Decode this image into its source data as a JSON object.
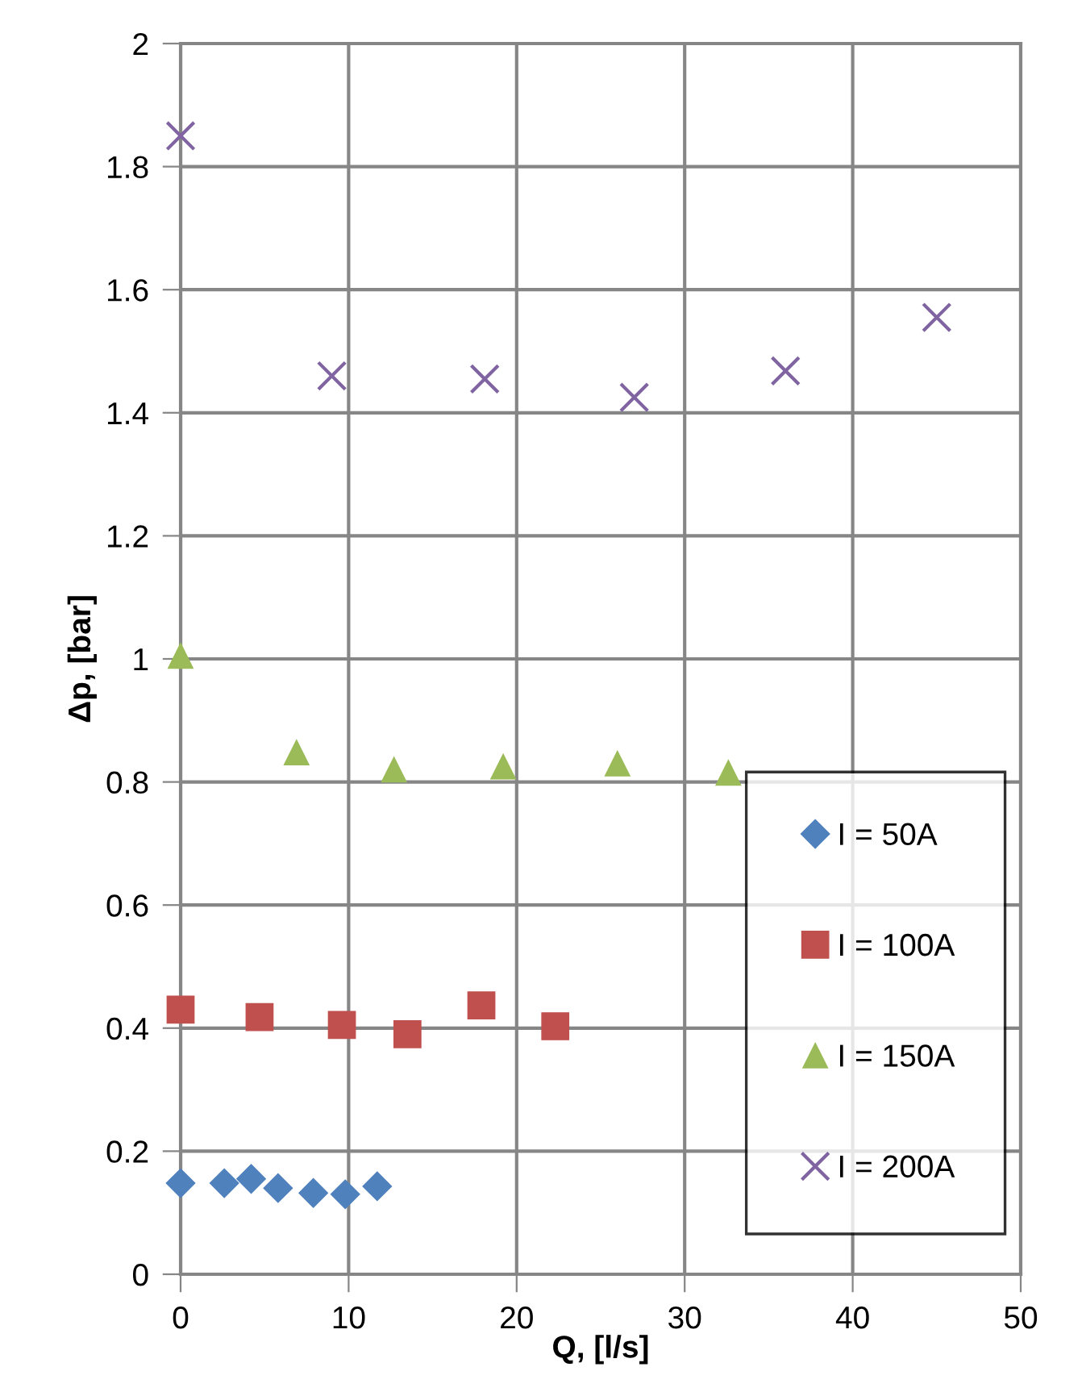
{
  "chart_data": {
    "type": "scatter",
    "xlabel": "Q, [l/s]",
    "ylabel": "Δp, [bar]",
    "xlim": [
      0,
      50
    ],
    "xticks": [
      0,
      10,
      20,
      30,
      40,
      50
    ],
    "ylim": [
      0,
      2
    ],
    "yticks": [
      0,
      0.2,
      0.4,
      0.6,
      0.8,
      1,
      1.2,
      1.4,
      1.6,
      1.8,
      2
    ],
    "grid": true,
    "legend": "right",
    "series": [
      {
        "name": "I = 50A",
        "color": "#4f81bd",
        "marker": "diamond",
        "x": [
          0,
          2.6,
          4.2,
          5.8,
          7.9,
          9.8,
          11.7
        ],
        "values": [
          0.148,
          0.148,
          0.155,
          0.14,
          0.132,
          0.13,
          0.143
        ]
      },
      {
        "name": "I = 100A",
        "color": "#c0504d",
        "marker": "square",
        "x": [
          0,
          4.7,
          9.6,
          13.5,
          17.9,
          22.3
        ],
        "values": [
          0.43,
          0.418,
          0.405,
          0.39,
          0.437,
          0.403
        ]
      },
      {
        "name": "I = 150A",
        "color": "#9bbb59",
        "marker": "triangle",
        "x": [
          0,
          6.9,
          12.7,
          19.2,
          26,
          32.6
        ],
        "values": [
          1.005,
          0.848,
          0.82,
          0.825,
          0.83,
          0.815
        ]
      },
      {
        "name": "I = 200A",
        "color": "#8064a2",
        "marker": "cross",
        "x": [
          0,
          9,
          18.1,
          27,
          36,
          45
        ],
        "values": [
          1.85,
          1.46,
          1.455,
          1.425,
          1.468,
          1.555
        ]
      }
    ]
  }
}
